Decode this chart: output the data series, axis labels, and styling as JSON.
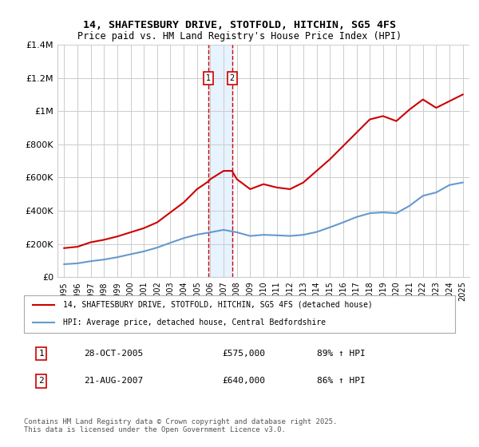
{
  "title": "14, SHAFTESBURY DRIVE, STOTFOLD, HITCHIN, SG5 4FS",
  "subtitle": "Price paid vs. HM Land Registry's House Price Index (HPI)",
  "legend_line1": "14, SHAFTESBURY DRIVE, STOTFOLD, HITCHIN, SG5 4FS (detached house)",
  "legend_line2": "HPI: Average price, detached house, Central Bedfordshire",
  "footer": "Contains HM Land Registry data © Crown copyright and database right 2025.\nThis data is licensed under the Open Government Licence v3.0.",
  "transactions": [
    {
      "id": 1,
      "date": "28-OCT-2005",
      "price": "£575,000",
      "hpi": "89% ↑ HPI",
      "year": 2005.83
    },
    {
      "id": 2,
      "date": "21-AUG-2007",
      "price": "£640,000",
      "hpi": "86% ↑ HPI",
      "year": 2007.63
    }
  ],
  "red_line_x": [
    1995,
    1996,
    1997,
    1998,
    1999,
    2000,
    2001,
    2002,
    2003,
    2004,
    2005,
    2005.83,
    2006,
    2007,
    2007.63,
    2008,
    2009,
    2010,
    2011,
    2012,
    2013,
    2014,
    2015,
    2016,
    2017,
    2018,
    2019,
    2020,
    2021,
    2022,
    2023,
    2024,
    2025
  ],
  "red_line_y": [
    175000,
    183000,
    210000,
    225000,
    245000,
    270000,
    295000,
    330000,
    390000,
    450000,
    530000,
    575000,
    590000,
    640000,
    640000,
    590000,
    530000,
    560000,
    540000,
    530000,
    570000,
    640000,
    710000,
    790000,
    870000,
    950000,
    970000,
    940000,
    1010000,
    1070000,
    1020000,
    1060000,
    1100000
  ],
  "blue_line_x": [
    1995,
    1996,
    1997,
    1998,
    1999,
    2000,
    2001,
    2002,
    2003,
    2004,
    2005,
    2006,
    2007,
    2008,
    2009,
    2010,
    2011,
    2012,
    2013,
    2014,
    2015,
    2016,
    2017,
    2018,
    2019,
    2020,
    2021,
    2022,
    2023,
    2024,
    2025
  ],
  "blue_line_y": [
    78000,
    83000,
    96000,
    106000,
    120000,
    138000,
    155000,
    178000,
    207000,
    235000,
    256000,
    270000,
    285000,
    270000,
    248000,
    255000,
    252000,
    248000,
    255000,
    272000,
    300000,
    330000,
    362000,
    385000,
    390000,
    385000,
    430000,
    490000,
    510000,
    555000,
    570000
  ],
  "ylim": [
    0,
    1400000
  ],
  "xlim": [
    1994.5,
    2025.5
  ],
  "yticks": [
    0,
    200000,
    400000,
    600000,
    800000,
    1000000,
    1200000,
    1400000
  ],
  "ytick_labels": [
    "£0",
    "£200K",
    "£400K",
    "£600K",
    "£800K",
    "£1M",
    "£1.2M",
    "£1.4M"
  ],
  "xticks": [
    1995,
    1996,
    1997,
    1998,
    1999,
    2000,
    2001,
    2002,
    2003,
    2004,
    2005,
    2006,
    2007,
    2008,
    2009,
    2010,
    2011,
    2012,
    2013,
    2014,
    2015,
    2016,
    2017,
    2018,
    2019,
    2020,
    2021,
    2022,
    2023,
    2024,
    2025
  ],
  "red_color": "#cc0000",
  "blue_color": "#6699cc",
  "bg_color": "#ffffff",
  "plot_bg_color": "#ffffff",
  "grid_color": "#cccccc",
  "vline_color": "#cc0000",
  "shade_color": "#ddeeff",
  "transaction_box_color": "#ffffff",
  "transaction_box_border": "#cc0000"
}
